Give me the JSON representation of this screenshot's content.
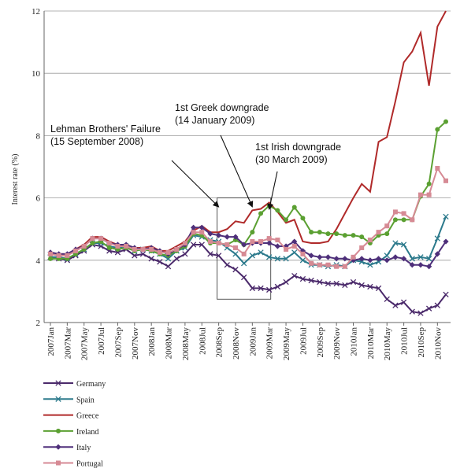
{
  "chart_data": {
    "type": "line",
    "title": "",
    "ylabel": "Interest rate (%)",
    "xlabel": "",
    "ylim": [
      2,
      12
    ],
    "yticks": [
      2,
      4,
      6,
      8,
      10,
      12
    ],
    "grid": "horizontal",
    "legend_position": "bottom-left",
    "categories": [
      "2007Jan",
      "2007Feb",
      "2007Mar",
      "2007Apr",
      "2007May",
      "2007Jun",
      "2007Jul",
      "2007Aug",
      "2007Sep",
      "2007Oct",
      "2007Nov",
      "2007Dec",
      "2008Jan",
      "2008Feb",
      "2008Mar",
      "2008Apr",
      "2008May",
      "2008Jun",
      "2008Jul",
      "2008Aug",
      "2008Sep",
      "2008Oct",
      "2008Nov",
      "2008Dec",
      "2009Jan",
      "2009Feb",
      "2009Mar",
      "2009Apr",
      "2009May",
      "2009Jun",
      "2009Jul",
      "2009Aug",
      "2009Sep",
      "2009Oct",
      "2009Nov",
      "2009Dec",
      "2010Jan",
      "2010Feb",
      "2010Mar",
      "2010Apr",
      "2010May",
      "2010Jun",
      "2010Jul",
      "2010Aug",
      "2010Sep",
      "2010Oct",
      "2010Nov",
      "2010Dec"
    ],
    "tick_labels": [
      "2007Jan",
      "2007Mar",
      "2007May",
      "2007Jul",
      "2007Sep",
      "2007Nov",
      "2008Jan",
      "2008Mar",
      "2008May",
      "2008Jul",
      "2008Sep",
      "2008Nov",
      "2009Jan",
      "2009Mar",
      "2009May",
      "2009Jul",
      "2009Sep",
      "2009Nov",
      "2010Jan",
      "2010Mar",
      "2010May",
      "2010Jul",
      "2010Sep",
      "2010Nov"
    ],
    "series": [
      {
        "name": "Germany",
        "color": "#4b2a6b",
        "marker": "x",
        "values": [
          4.1,
          4.05,
          4.0,
          4.15,
          4.3,
          4.5,
          4.45,
          4.3,
          4.25,
          4.35,
          4.15,
          4.2,
          4.05,
          3.95,
          3.8,
          4.05,
          4.2,
          4.5,
          4.5,
          4.2,
          4.15,
          3.85,
          3.7,
          3.45,
          3.1,
          3.1,
          3.05,
          3.15,
          3.3,
          3.5,
          3.4,
          3.35,
          3.3,
          3.25,
          3.25,
          3.2,
          3.3,
          3.2,
          3.15,
          3.1,
          2.75,
          2.55,
          2.65,
          2.35,
          2.3,
          2.45,
          2.55,
          2.9
        ]
      },
      {
        "name": "Spain",
        "color": "#2c7a8c",
        "marker": "x",
        "values": [
          4.1,
          4.1,
          4.05,
          4.2,
          4.35,
          4.55,
          4.55,
          4.45,
          4.4,
          4.45,
          4.3,
          4.35,
          4.3,
          4.2,
          4.05,
          4.3,
          4.4,
          4.8,
          4.75,
          4.65,
          4.6,
          4.4,
          4.2,
          3.9,
          4.15,
          4.25,
          4.1,
          4.05,
          4.05,
          4.25,
          4.0,
          3.85,
          3.85,
          3.8,
          3.85,
          3.8,
          4.0,
          3.95,
          3.85,
          3.95,
          4.15,
          4.55,
          4.5,
          4.05,
          4.1,
          4.05,
          4.7,
          5.4
        ]
      },
      {
        "name": "Greece",
        "color": "#b02a2a",
        "marker": "none",
        "values": [
          4.25,
          4.2,
          4.2,
          4.35,
          4.5,
          4.75,
          4.75,
          4.6,
          4.5,
          4.5,
          4.4,
          4.4,
          4.45,
          4.3,
          4.3,
          4.45,
          4.6,
          4.95,
          5.1,
          4.9,
          4.9,
          5.0,
          5.25,
          5.2,
          5.6,
          5.65,
          5.85,
          5.55,
          5.2,
          5.3,
          4.6,
          4.55,
          4.55,
          4.6,
          5.0,
          5.5,
          6.0,
          6.45,
          6.2,
          7.8,
          7.95,
          9.1,
          10.35,
          10.7,
          11.3,
          9.6,
          11.5,
          12.0
        ]
      },
      {
        "name": "Ireland",
        "color": "#5ba032",
        "marker": "circle",
        "values": [
          4.05,
          4.05,
          4.05,
          4.2,
          4.35,
          4.55,
          4.6,
          4.4,
          4.35,
          4.4,
          4.3,
          4.35,
          4.3,
          4.2,
          4.15,
          4.3,
          4.45,
          4.85,
          4.8,
          4.55,
          4.55,
          4.5,
          4.65,
          4.5,
          4.9,
          5.5,
          5.75,
          5.6,
          5.3,
          5.7,
          5.35,
          4.9,
          4.9,
          4.85,
          4.85,
          4.8,
          4.8,
          4.75,
          4.55,
          4.8,
          4.85,
          5.3,
          5.3,
          5.3,
          6.05,
          6.45,
          8.2,
          8.45
        ]
      },
      {
        "name": "Italy",
        "color": "#4e2f7a",
        "marker": "diamond",
        "values": [
          4.25,
          4.2,
          4.2,
          4.35,
          4.45,
          4.7,
          4.7,
          4.55,
          4.5,
          4.5,
          4.4,
          4.35,
          4.4,
          4.3,
          4.2,
          4.35,
          4.5,
          5.05,
          5.05,
          4.85,
          4.8,
          4.75,
          4.75,
          4.5,
          4.55,
          4.55,
          4.55,
          4.45,
          4.45,
          4.6,
          4.3,
          4.15,
          4.1,
          4.1,
          4.05,
          4.05,
          4.0,
          4.05,
          4.0,
          4.05,
          4.0,
          4.1,
          4.05,
          3.85,
          3.85,
          3.8,
          4.2,
          4.6
        ]
      },
      {
        "name": "Portugal",
        "color": "#d68a94",
        "marker": "square",
        "values": [
          4.2,
          4.15,
          4.15,
          4.3,
          4.45,
          4.7,
          4.7,
          4.55,
          4.45,
          4.45,
          4.35,
          4.35,
          4.35,
          4.25,
          4.25,
          4.35,
          4.55,
          4.9,
          4.9,
          4.6,
          4.55,
          4.5,
          4.4,
          4.2,
          4.6,
          4.6,
          4.7,
          4.65,
          4.35,
          4.45,
          4.2,
          3.9,
          3.85,
          3.85,
          3.8,
          3.8,
          4.1,
          4.4,
          4.65,
          4.9,
          5.1,
          5.55,
          5.5,
          5.3,
          6.1,
          6.1,
          6.95,
          6.55
        ]
      }
    ],
    "annotations": [
      {
        "id": "lehman",
        "lines": [
          "Lehman Brothers' Failure",
          "(15 September 2008)"
        ],
        "arrow_to": "2008Sep"
      },
      {
        "id": "greek",
        "lines": [
          "1st Greek downgrade",
          "(14 January 2009)"
        ],
        "arrow_to": "2009Jan"
      },
      {
        "id": "irish",
        "lines": [
          "1st Irish downgrade",
          "(30 March 2009)"
        ],
        "arrow_to": "2009Mar"
      }
    ],
    "highlight_box": {
      "x_from": "2008Sep",
      "x_to": "2009Mar",
      "y_from": 2.75,
      "y_to": 6.0
    }
  }
}
